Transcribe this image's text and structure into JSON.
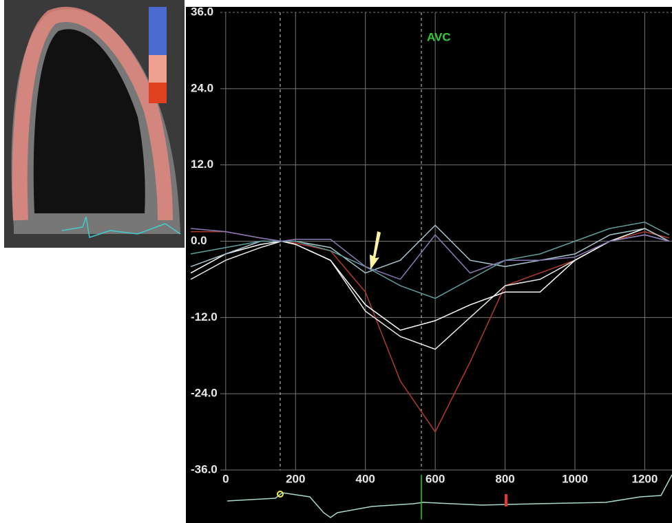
{
  "chart_data": {
    "type": "line",
    "annotation": "AVC",
    "x": [
      -100,
      0,
      100,
      160,
      200,
      300,
      400,
      500,
      600,
      700,
      800,
      900,
      1000,
      1100,
      1200,
      1270
    ],
    "series": [
      {
        "color": "#b03a2e",
        "values": [
          1.5,
          1.5,
          0.5,
          0,
          -0.3,
          -1.5,
          -8,
          -22,
          -30,
          -19,
          -7,
          -5,
          -3,
          0,
          1.5,
          0.5
        ]
      },
      {
        "color": "#e8e8e8",
        "values": [
          -6,
          -3,
          -1,
          0,
          -0.5,
          -3,
          -11,
          -15,
          -17,
          -12,
          -7,
          -6,
          -3,
          0,
          1,
          0
        ]
      },
      {
        "color": "#ffffff",
        "values": [
          -5,
          -2,
          -0.5,
          0,
          -0.5,
          -3,
          -10,
          -14,
          -12.5,
          -10,
          -8,
          -8,
          -3,
          0,
          2,
          0
        ]
      },
      {
        "color": "#a8c4cc",
        "values": [
          -4,
          -2,
          0,
          0,
          0,
          -1,
          -5,
          -3,
          2.5,
          -3,
          -4,
          -3,
          -2,
          1,
          2,
          0
        ]
      },
      {
        "color": "#5f9e9e",
        "values": [
          -2,
          -1,
          0,
          0,
          0,
          -1.5,
          -4,
          -7,
          -9,
          -6,
          -3,
          -2,
          0,
          2,
          3,
          1
        ]
      },
      {
        "color": "#8a7ab8",
        "values": [
          2,
          1.5,
          0.5,
          0,
          0.3,
          0.3,
          -4,
          -6,
          1,
          -5,
          -3,
          -3,
          -2.5,
          0,
          1,
          0
        ]
      }
    ],
    "xlim": [
      -114,
      1278
    ],
    "ylim": [
      -36,
      36
    ],
    "xticks": [
      0,
      200,
      400,
      600,
      800,
      1000,
      1200
    ],
    "yticks": [
      {
        "value": 36,
        "label": "36.0"
      },
      {
        "value": 24,
        "label": "24.0"
      },
      {
        "value": 12,
        "label": "12.0"
      },
      {
        "value": 0,
        "label": "0.0"
      },
      {
        "value": -12,
        "label": "-12.0"
      },
      {
        "value": -24,
        "label": "-24.0"
      },
      {
        "value": -36,
        "label": "-36.0"
      }
    ],
    "grid": true
  }
}
